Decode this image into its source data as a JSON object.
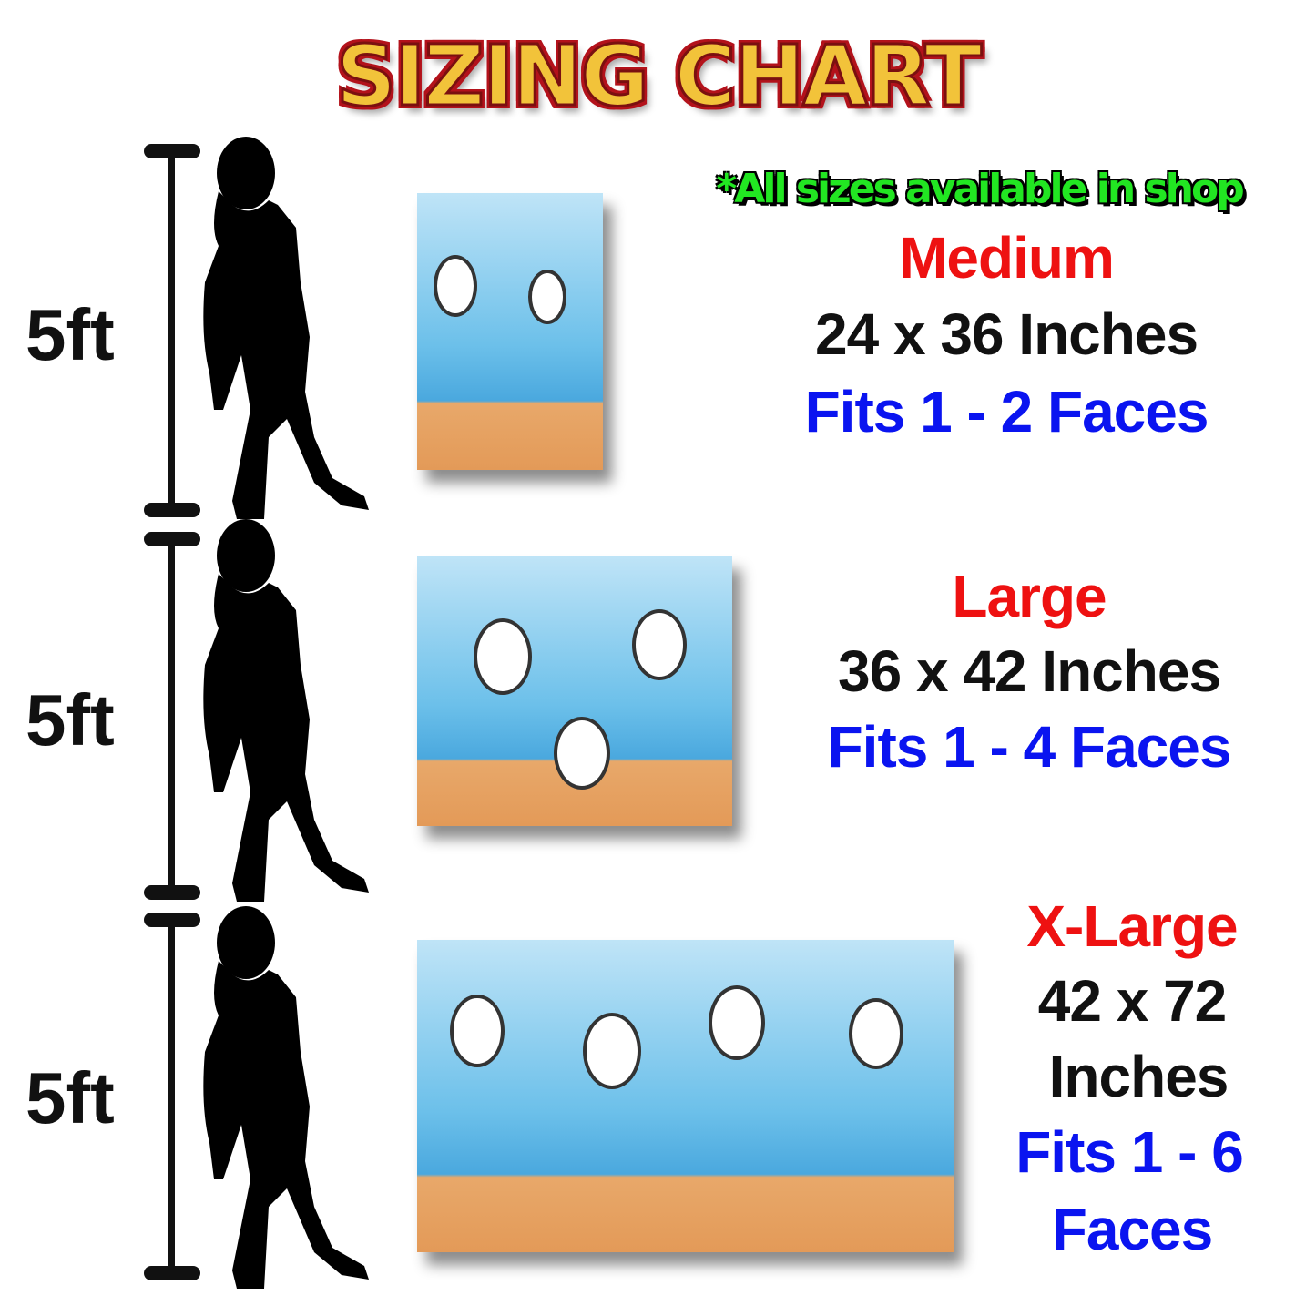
{
  "title": "SIZING CHART",
  "note": "*All sizes available in shop",
  "height_label": "5ft",
  "colors": {
    "size_name": "#ee1111",
    "dimensions": "#111111",
    "faces": "#0a14f0",
    "note": "#22e622",
    "title_gold": "#f2c33a",
    "title_red": "#b3121b"
  },
  "sizes": [
    {
      "name": "Medium",
      "dimensions": "24 x 36 Inches",
      "faces": "Fits 1 - 2 Faces"
    },
    {
      "name": "Large",
      "dimensions": "36 x 42 Inches",
      "faces": "Fits 1 - 4 Faces"
    },
    {
      "name": "X-Large",
      "dimensions_line1": "42 x 72",
      "dimensions_line2": "Inches",
      "faces_line1": "Fits 1 - 6",
      "faces_line2": "Faces"
    }
  ]
}
